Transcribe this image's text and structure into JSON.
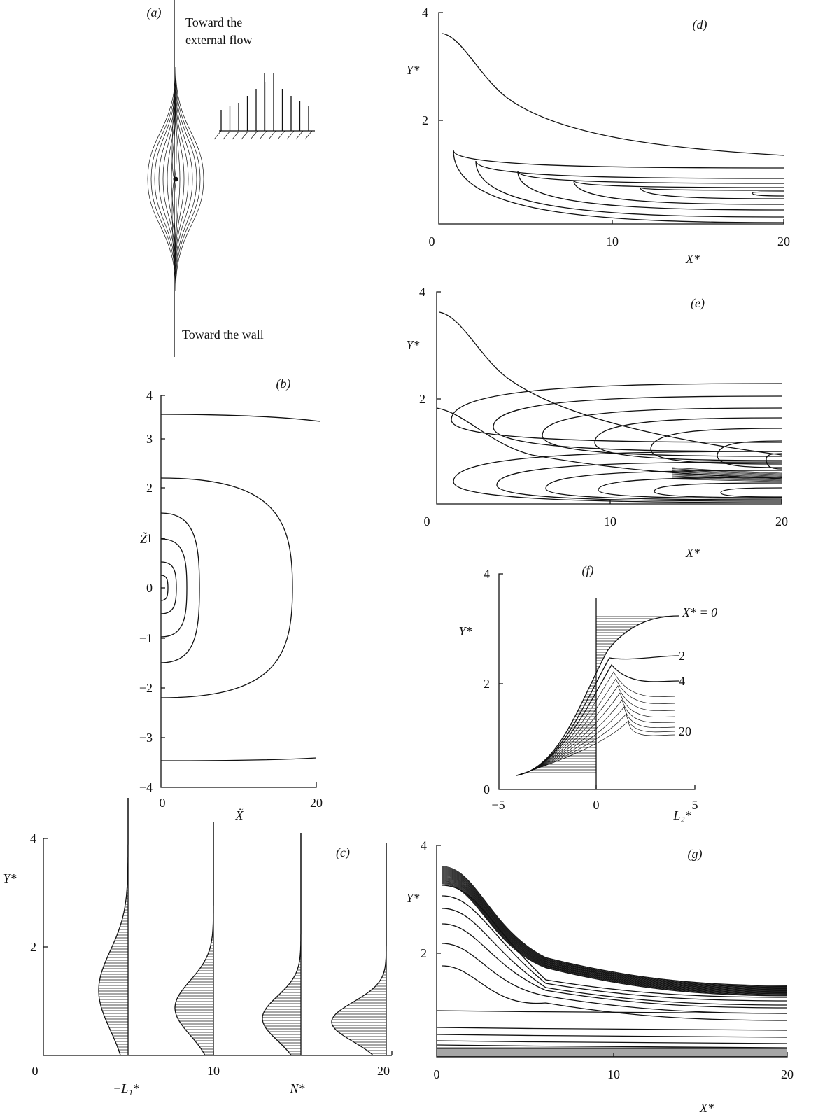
{
  "panels": [
    {
      "label": "(a)",
      "annotation_top": "Toward the external flow",
      "annotation_bottom": "Toward the wall"
    },
    {
      "label": "(b)",
      "y_label": "Z̃",
      "x_label": "X̃",
      "yticks": [
        "4",
        "3",
        "2",
        "1",
        "0",
        "−1",
        "−2",
        "−3",
        "−4"
      ],
      "xticks": [
        "0",
        "20"
      ]
    },
    {
      "label": "(c)",
      "y_label": "Y*",
      "yticks": [
        "4",
        "2"
      ],
      "xticks": [
        "0",
        "10",
        "20"
      ],
      "x_labels": [
        "−L₁*",
        "N*"
      ]
    },
    {
      "label": "(d)",
      "y_label": "Y*",
      "x_label": "X*",
      "yticks": [
        "4",
        "2"
      ],
      "xticks": [
        "0",
        "10",
        "20"
      ]
    },
    {
      "label": "(e)",
      "y_label": "Y*",
      "x_label": "X*",
      "yticks": [
        "4",
        "2"
      ],
      "xticks": [
        "0",
        "10",
        "20"
      ]
    },
    {
      "label": "(f)",
      "y_label": "Y*",
      "x_label": "L₂*",
      "yticks": [
        "4",
        "2",
        "0"
      ],
      "xticks": [
        "−5",
        "0",
        "5"
      ],
      "curve_labels": [
        "X* = 0",
        "2",
        "4",
        "20"
      ]
    },
    {
      "label": "(g)",
      "y_label": "Y*",
      "x_label": "X*",
      "yticks": [
        "4",
        "2"
      ],
      "xticks": [
        "0",
        "10",
        "20"
      ]
    }
  ]
}
